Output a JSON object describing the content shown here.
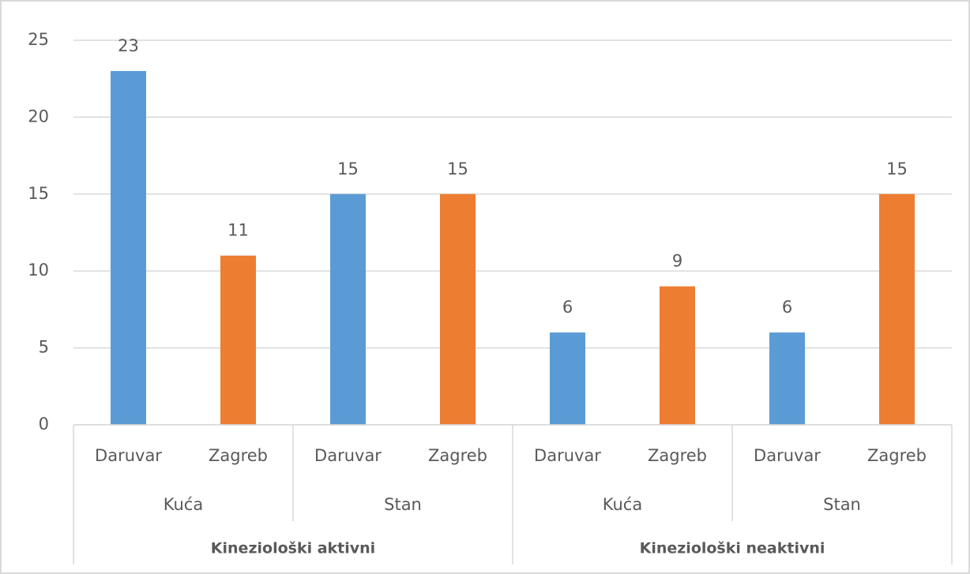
{
  "chart_data": {
    "type": "bar",
    "colors": [
      "#5b9bd5",
      "#ed7d31"
    ],
    "ylim": [
      0,
      25
    ],
    "yticks": [
      0,
      5,
      10,
      15,
      20,
      25
    ],
    "grid": true,
    "groups": [
      {
        "name": "Kineziološki aktivni",
        "subgroups": [
          {
            "name": "Kuća",
            "categories": [
              "Daruvar",
              "Zagreb"
            ],
            "values": [
              23,
              11
            ]
          },
          {
            "name": "Stan",
            "categories": [
              "Daruvar",
              "Zagreb"
            ],
            "values": [
              15,
              15
            ]
          }
        ]
      },
      {
        "name": "Kineziološki neaktivni",
        "subgroups": [
          {
            "name": "Kuća",
            "categories": [
              "Daruvar",
              "Zagreb"
            ],
            "values": [
              6,
              9
            ]
          },
          {
            "name": "Stan",
            "categories": [
              "Daruvar",
              "Zagreb"
            ],
            "values": [
              6,
              15
            ]
          }
        ]
      }
    ]
  }
}
